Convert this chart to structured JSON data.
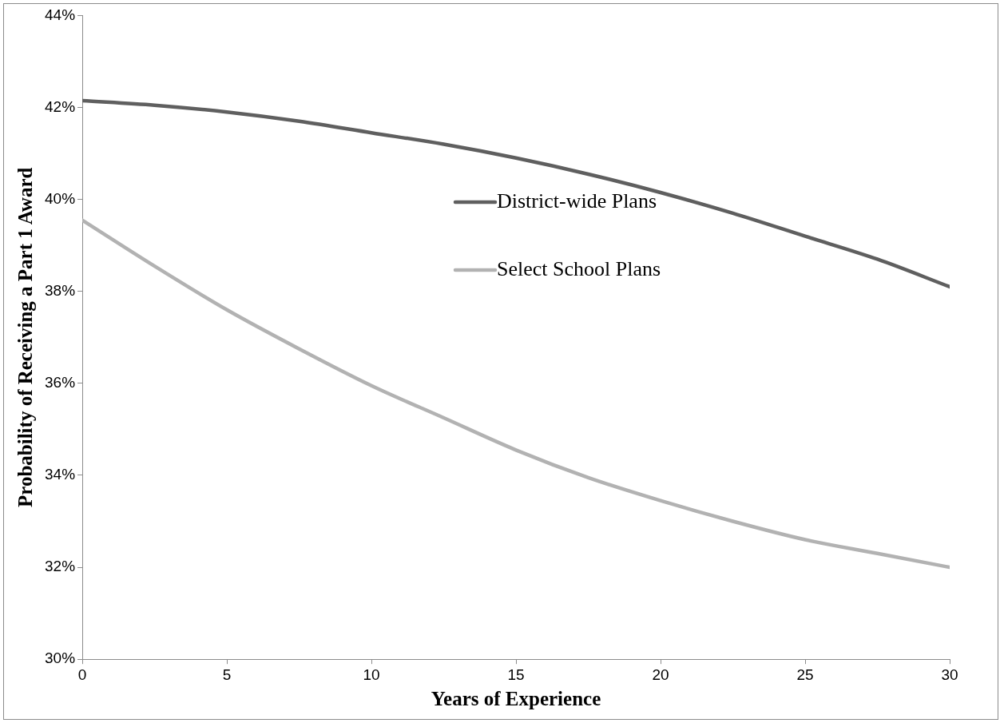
{
  "chart_data": {
    "type": "line",
    "xlabel": "Years of Experience",
    "ylabel": "Probability of Receiving a Part 1 Award",
    "x": [
      0,
      2.5,
      5,
      7.5,
      10,
      12.5,
      15,
      17.5,
      20,
      22.5,
      25,
      27.5,
      30
    ],
    "series": [
      {
        "name": "District-wide Plans",
        "color": "#5f5f5f",
        "values": [
          42.15,
          42.05,
          41.9,
          41.7,
          41.45,
          41.2,
          40.9,
          40.55,
          40.15,
          39.7,
          39.2,
          38.7,
          38.1
        ]
      },
      {
        "name": "Select School Plans",
        "color": "#b2b2b2",
        "values": [
          39.55,
          38.55,
          37.6,
          36.75,
          35.95,
          35.25,
          34.55,
          33.95,
          33.45,
          33.0,
          32.6,
          32.3,
          32.0
        ]
      }
    ],
    "xlim": [
      0,
      30
    ],
    "xticks": [
      0,
      5,
      10,
      15,
      20,
      25,
      30
    ],
    "ylim": [
      30,
      44
    ],
    "yticks": [
      {
        "value": 30,
        "label": "30%"
      },
      {
        "value": 32,
        "label": "32%"
      },
      {
        "value": 34,
        "label": "34%"
      },
      {
        "value": 36,
        "label": "36%"
      },
      {
        "value": 38,
        "label": "38%"
      },
      {
        "value": 40,
        "label": "40%"
      },
      {
        "value": 42,
        "label": "42%"
      },
      {
        "value": 44,
        "label": "44%"
      }
    ],
    "grid": false,
    "legend": "right",
    "marker": "none",
    "line_style": "solid"
  }
}
